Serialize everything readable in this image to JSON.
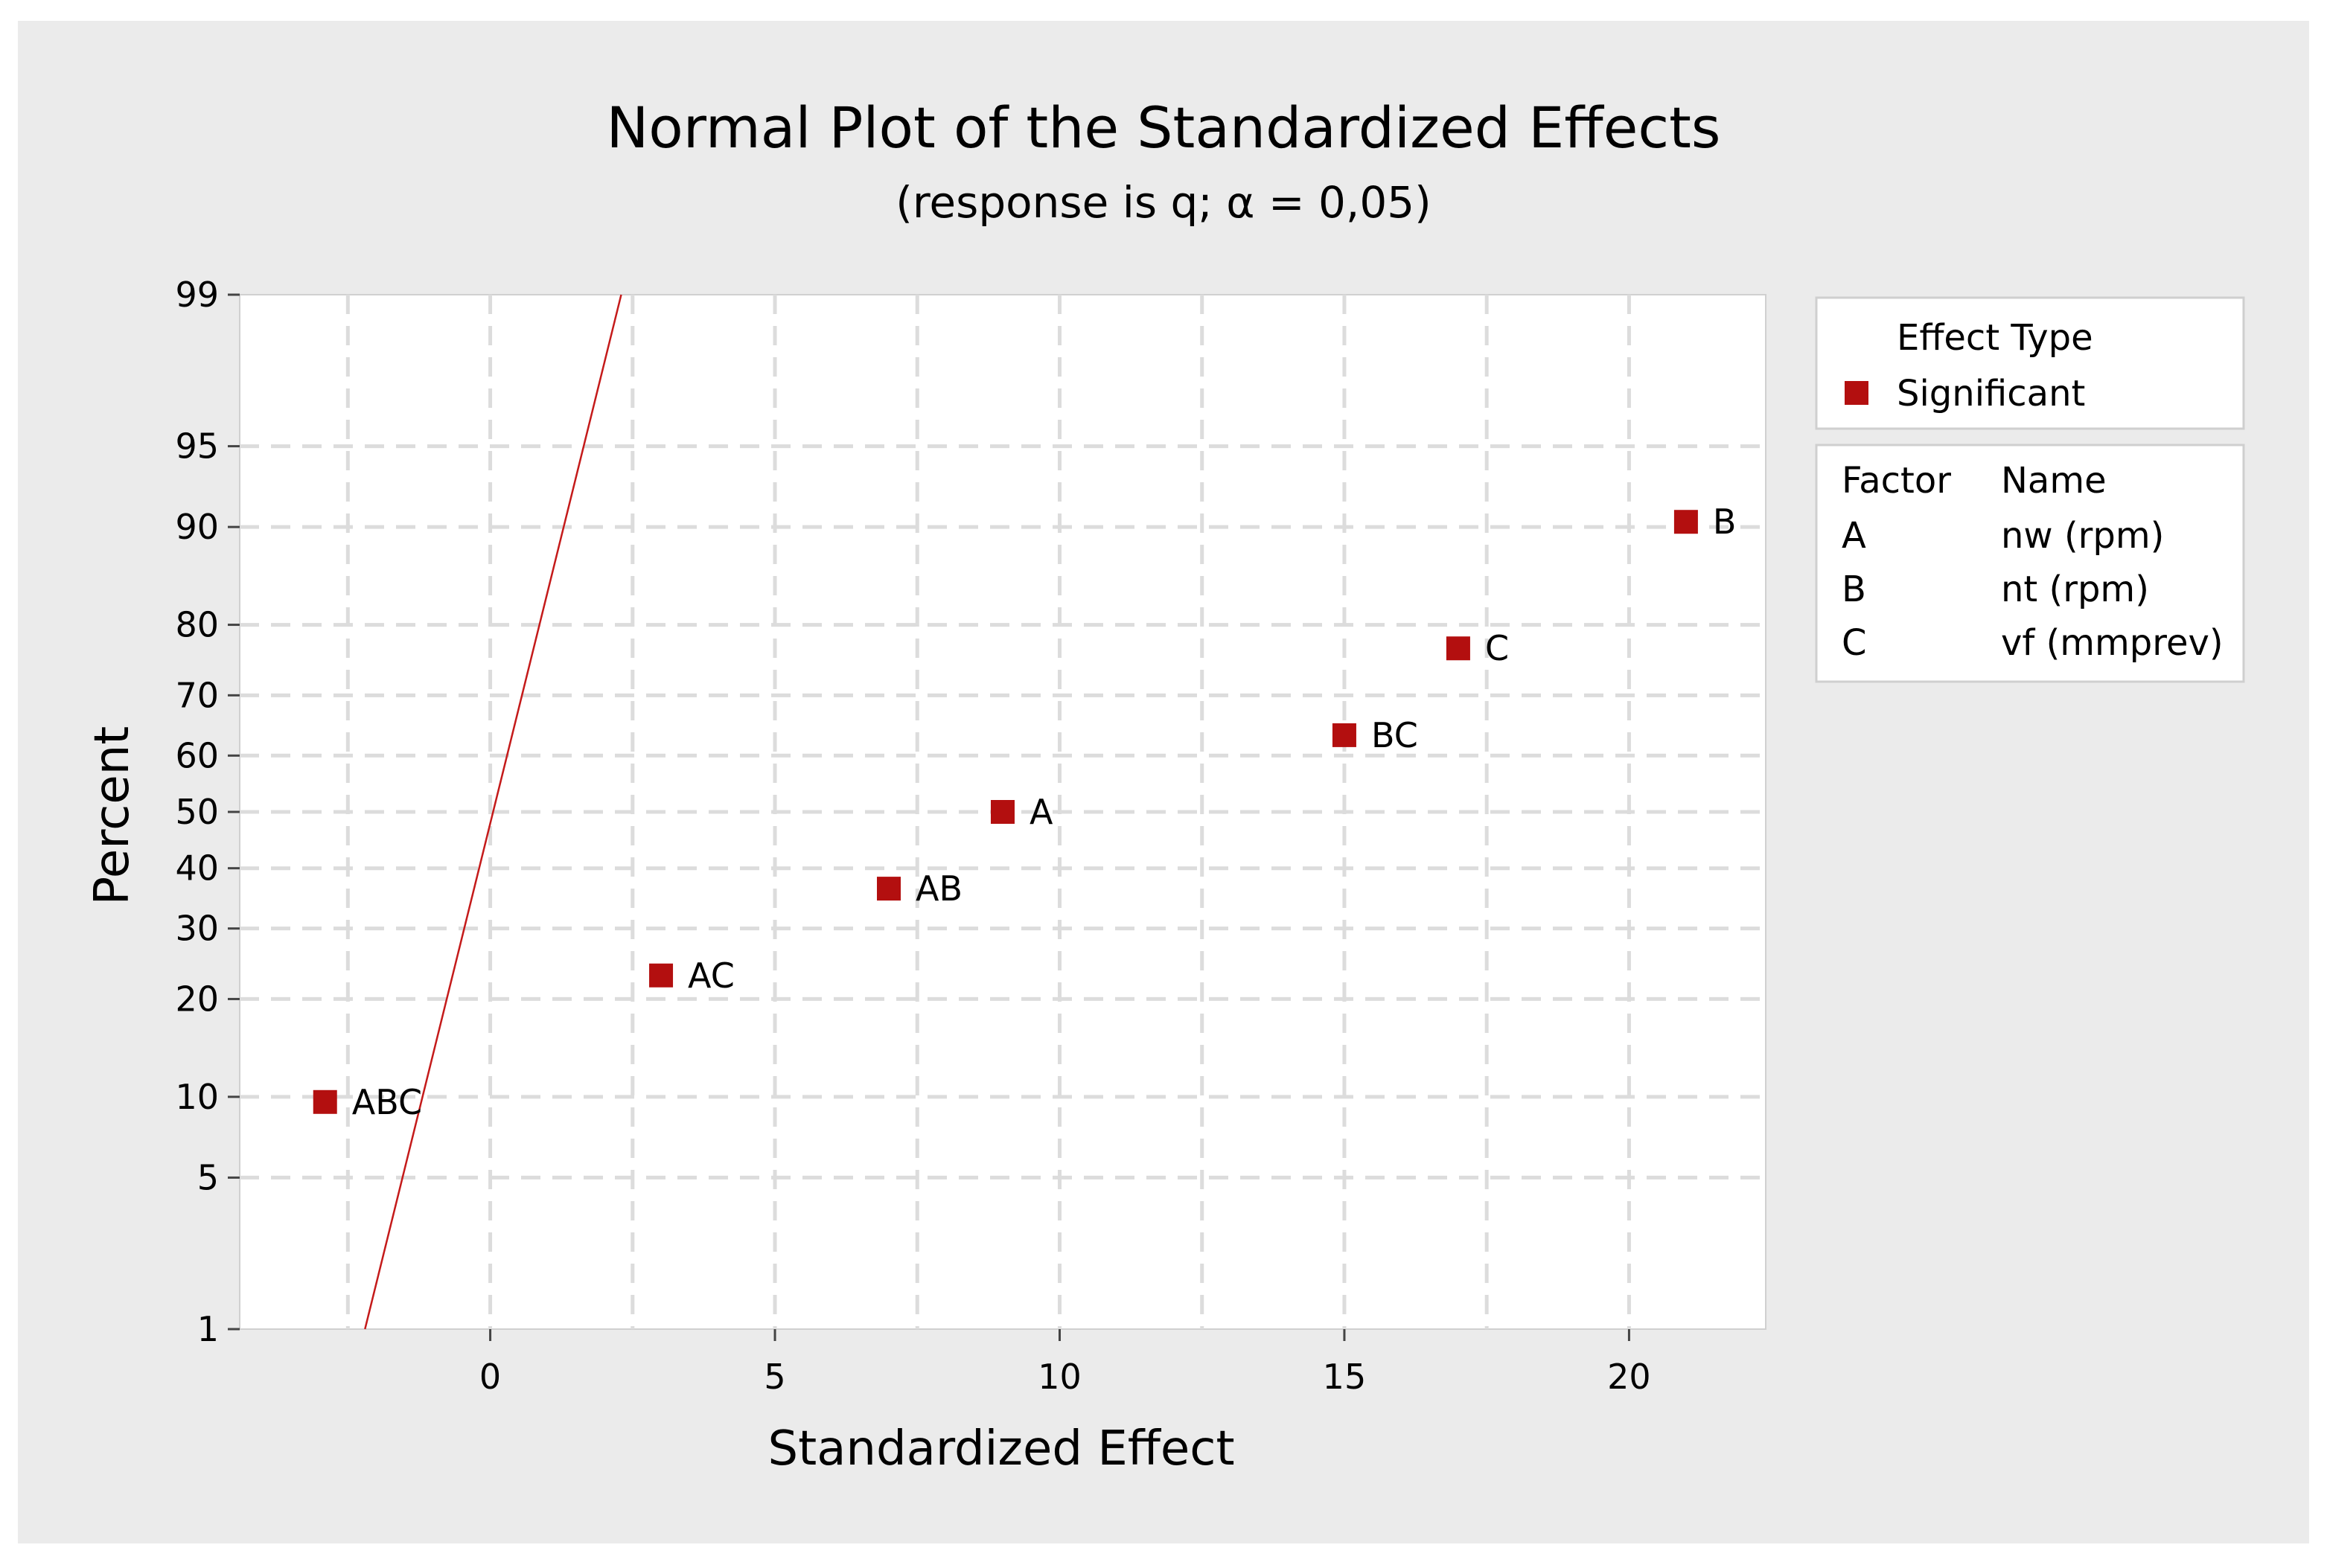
{
  "chart_data": {
    "type": "scatter",
    "title": "Normal Plot of the Standardized Effects",
    "subtitle": "(response is q; α = 0,05)",
    "xlabel": "Standardized Effect",
    "ylabel": "Percent",
    "xlim": [
      -4.4,
      22.4
    ],
    "ylim": [
      1,
      99
    ],
    "y_scale": "normal-probability",
    "grid": true,
    "x_ticks": [
      0,
      5,
      10,
      15,
      20
    ],
    "y_ticks": [
      1,
      5,
      10,
      20,
      30,
      40,
      50,
      60,
      70,
      80,
      90,
      95,
      99
    ],
    "points": [
      {
        "label": "ABC",
        "x": -2.9,
        "y": 9.6
      },
      {
        "label": "AC",
        "x": 3.0,
        "y": 23.1
      },
      {
        "label": "AB",
        "x": 7.0,
        "y": 36.5
      },
      {
        "label": "A",
        "x": 9.0,
        "y": 50.0
      },
      {
        "label": "BC",
        "x": 15.0,
        "y": 63.5
      },
      {
        "label": "C",
        "x": 17.0,
        "y": 76.9
      },
      {
        "label": "B",
        "x": 21.0,
        "y": 90.4
      }
    ],
    "reference_line": {
      "x_at_1": -2.2,
      "x_at_99": 2.3
    },
    "colors": {
      "point": "#b30f0f",
      "line": "#c41a1a",
      "background": "#ebebeb"
    },
    "legend": {
      "placement": "right",
      "title": "Effect Type",
      "entries": [
        {
          "label": "Significant",
          "color": "#b30f0f"
        }
      ]
    },
    "factor_table": {
      "headers": [
        "Factor",
        "Name"
      ],
      "rows": [
        [
          "A",
          "nw (rpm)"
        ],
        [
          "B",
          "nt (rpm)"
        ],
        [
          "C",
          "vf (mmprev)"
        ]
      ]
    }
  }
}
